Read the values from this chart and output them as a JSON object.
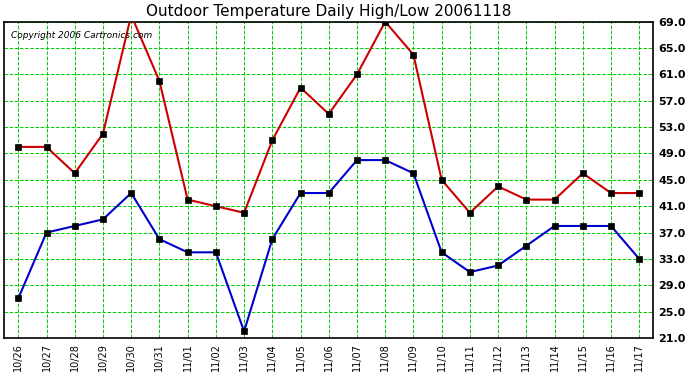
{
  "title": "Outdoor Temperature Daily High/Low 20061118",
  "copyright_text": "Copyright 2006 Cartronics.com",
  "x_ticks": [
    "10/26",
    "10/27",
    "10/28",
    "10/29",
    "10/30",
    "10/31",
    "11/01",
    "11/02",
    "11/03",
    "11/04",
    "11/05",
    "11/06",
    "11/07",
    "11/08",
    "11/09",
    "11/10",
    "11/11",
    "11/12",
    "11/13",
    "11/14",
    "11/15",
    "11/16",
    "11/17"
  ],
  "high_temps": [
    50,
    50,
    46,
    52,
    70,
    60,
    42,
    41,
    40,
    51,
    59,
    55,
    61,
    69,
    64,
    45,
    40,
    44,
    42,
    42,
    46,
    43,
    43
  ],
  "low_temps": [
    27,
    37,
    38,
    39,
    43,
    36,
    34,
    34,
    22,
    36,
    43,
    43,
    48,
    48,
    46,
    34,
    31,
    32,
    35,
    38,
    38,
    38,
    33
  ],
  "high_color": "#cc0000",
  "low_color": "#0000cc",
  "bg_color": "#ffffff",
  "plot_bg_color": "#ffffff",
  "grid_color": "#00cc00",
  "title_color": "#000000",
  "ylim_min": 21.0,
  "ylim_max": 69.0,
  "yticks": [
    21.0,
    25.0,
    29.0,
    33.0,
    37.0,
    41.0,
    45.0,
    49.0,
    53.0,
    57.0,
    61.0,
    65.0,
    69.0
  ],
  "marker": "s",
  "marker_size": 4,
  "linewidth": 1.5
}
